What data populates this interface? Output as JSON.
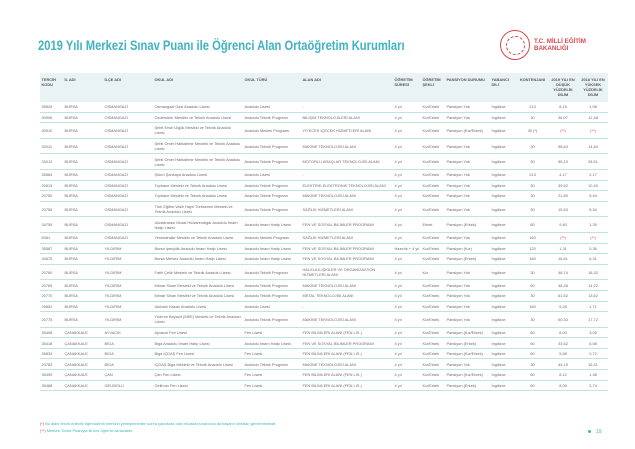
{
  "title": "2019 Yılı Merkezi Sınav Puanı ile Öğrenci Alan Ortaöğretim Kurumları",
  "logo": {
    "line1": "T.C. MİLLİ EĞİTİM",
    "line2": "BAKANLIĞI"
  },
  "colors": {
    "accent": "#3fb3c2",
    "brand_red": "#d8474b"
  },
  "columns": [
    "TERCİH KODU",
    "İL ADI",
    "İLÇE ADI",
    "OKUL ADI",
    "OKUL TÜRÜ",
    "ALAN ADI",
    "ÖĞRETİM SÜRESİ",
    "ÖĞRETİM ŞEKLİ",
    "PANSİYON DURUMU",
    "YABANCI DİLİ",
    "KONTENJANI",
    "2019 YILI EN DÜŞÜK YÜZDELİK DİLİM",
    "2018 YILI EN YÜKSEK YÜZDELİK DİLİM"
  ],
  "rows": [
    [
      "35829",
      "BURSA",
      "OSMANGAZİ",
      "Osmangazi Gazi Anadolu Lisesi",
      "Anadolu Lisesi",
      "-",
      "4 yıl",
      "Kız/Erkek",
      "Pansiyon Yok",
      "İngilizce",
      "213",
      "8,15",
      "1,98"
    ],
    [
      "30906",
      "BURSA",
      "OSMANGAZİ",
      "Özdemirler Mesleki ve Teknik Anadolu Lisesi",
      "Anadolu Teknik Programı",
      "BİLİŞİM TEKNOLOJİLERİ ALANI",
      "4 yıl",
      "Kız/Erkek",
      "Pansiyon Yok",
      "İngilizce",
      "30",
      "36,07",
      "12,48"
    ],
    [
      "30910",
      "BURSA",
      "OSMANGAZİ",
      "Şehit Ersel Ülgük Mesleki ve Teknik Anadolu Lisesi",
      "Anadolu Meslek Programı",
      "YİYECEK İÇECEK HİZMETLERİ ALANI",
      "4 yıl",
      "Kız/Erkek",
      "Pansiyon (Kız/Erkek)",
      "İngilizce",
      "30 (*)",
      "(**)",
      "(**)"
    ],
    [
      "33011",
      "BURSA",
      "OSMANGAZİ",
      "Şehit Ömer Halisdemir Mesleki ve Teknik Anadolu Lisesi",
      "Anadolu Teknik Programı",
      "MAKİNE TEKNOLOJİSİ ALANI",
      "4 yıl",
      "Kız/Erkek",
      "Pansiyon Yok",
      "İngilizce",
      "30",
      "58,63",
      "14,84"
    ],
    [
      "33012",
      "BURSA",
      "OSMANGAZİ",
      "Şehit Ömer Halisdemir Mesleki ve Teknik Anadolu Lisesi",
      "Anadolu Teknik Programı",
      "MOTORLU ARAÇLAR TEKNOLOJİSİ ALANI",
      "4 yıl",
      "Kız/Erkek",
      "Pansiyon Yok",
      "İngilizce",
      "30",
      "55,10",
      "28,51"
    ],
    [
      "35564",
      "BURSA",
      "OSMANGAZİ",
      "Şükrü Şankaya Anadolu Lisesi",
      "Anadolu Lisesi",
      "-",
      "4 yıl",
      "Kız/Erkek",
      "Pansiyon Yok",
      "İngilizce",
      "213",
      "4,17",
      "2,17"
    ],
    [
      "20613",
      "BURSA",
      "OSMANGAZİ",
      "Tophane Mesleki ve Teknik Anadolu Lisesi",
      "Anadolu Teknik Programı",
      "ELEKTRİK-ELEKTRONİK TEKNOLOJİSİ ALANI",
      "4 yıl",
      "Kız/Erkek",
      "Pansiyon Yok",
      "İngilizce",
      "30",
      "39,62",
      "10,40"
    ],
    [
      "20750",
      "BURSA",
      "OSMANGAZİ",
      "Tophane Mesleki ve Teknik Anadolu Lisesi",
      "Anadolu Teknik Programı",
      "MAKİNE TEKNOLOJİSİ ALANI",
      "4 yıl",
      "Kız/Erkek",
      "Pansiyon Yok",
      "İngilizce",
      "30",
      "21,80",
      "8,44"
    ],
    [
      "20755",
      "BURSA",
      "OSMANGAZİ",
      "Türk Eğitim Vakfı Hayri Türkseven Mesleki ve Teknik Anadolu Lisesi",
      "Anadolu Teknik Programı",
      "SAĞLIK HİZMETLERİ ALANI",
      "4 yıl",
      "Kız/Erkek",
      "Pansiyon Yok",
      "İngilizce",
      "30",
      "15,63",
      "6,34"
    ],
    [
      "34759",
      "BURSA",
      "OSMANGAZİ",
      "Uluslararası Murat Hüdavendigar Anadolu İmam Hatip Lisesi",
      "Anadolu İmam Hatip Lisesi",
      "FEN VE SOSYAL BİLİMLER PROGRAMI",
      "4 yıl",
      "Erkek",
      "Pansiyon (Erkek)",
      "İngilizce",
      "60",
      "9,80",
      "1,39"
    ],
    [
      "8361",
      "BURSA",
      "OSMANGAZİ",
      "Yenimahalle Mesleki ve Teknik Anadolu Lisesi",
      "Anadolu Meslek Programı",
      "SAĞLIK HİZMETLERİ ALANI",
      "4 yıl",
      "Kız/Erkek",
      "Pansiyon Yok",
      "İngilizce",
      "160",
      "(**)",
      "(**)"
    ],
    [
      "35587",
      "BURSA",
      "YILDIRIM",
      "Bursa İpekçilik Anadolu İmam Hatip Lisesi",
      "Anadolu İmam Hatip Lisesi",
      "FEN VE SOSYAL BİLİMLER PROGRAMI",
      "Hazırlık + 4 yıl",
      "Kız/Erkek",
      "Pansiyon (Kız)",
      "İngilizce",
      "120",
      "1,31",
      "0,36"
    ],
    [
      "34675",
      "BURSA",
      "YILDIRIM",
      "Bursa Merkez Anadolu İmam Hatip Lisesi",
      "Anadolu İmam Hatip Lisesi",
      "FEN VE SOSYAL BİLİMLER PROGRAMI",
      "4 yıl",
      "Kız/Erkek",
      "Pansiyon (Erkek)",
      "İngilizce",
      "180",
      "16,61",
      "6,31"
    ],
    [
      "20760",
      "BURSA",
      "YILDIRIM",
      "Fatih Çelik Mesleki ve Teknik Anadolu Lisesi",
      "Anadolu Teknik Programı",
      "HALKLA İLİŞKİLER VE ORGANİZASYON HİZMETLERİ ALANI",
      "4 yıl",
      "Kız",
      "Pansiyon Yok",
      "İngilizce",
      "30",
      "48,74",
      "18,32"
    ],
    [
      "20765",
      "BURSA",
      "YILDIRIM",
      "Mimar Sinan Mesleki ve Teknik Anadolu Lisesi",
      "Anadolu Teknik Programı",
      "MAKİNE TEKNOLOJİSİ ALANI",
      "4 yıl",
      "Kız/Erkek",
      "Pansiyon Yok",
      "İngilizce",
      "60",
      "48,28",
      "14,22"
    ],
    [
      "20770",
      "BURSA",
      "YILDIRIM",
      "Mimar Sinan Mesleki ve Teknik Anadolu Lisesi",
      "Anadolu Teknik Programı",
      "METAL TEKNOLOJİSİ ALANI",
      "4 yıl",
      "Kız/Erkek",
      "Pansiyon Yok",
      "İngilizce",
      "30",
      "61,62",
      "13,62"
    ],
    [
      "25852",
      "BURSA",
      "YILDIRIM",
      "Ulubatlı Hasan Anadolu Lisesi",
      "Anadolu Lisesi",
      "-",
      "4 yıl",
      "Kız/Erkek",
      "Pansiyon Yok",
      "İngilizce",
      "180",
      "5,28",
      "1,71"
    ],
    [
      "20775",
      "BURSA",
      "YILDIRIM",
      "Yıldırım Beyazıt (MKE) Mesleki ve Teknik Anadolu Lisesi",
      "Anadolu Teknik Programı",
      "MAKİNE TEKNOLOJİSİ ALANI",
      "4 yıl",
      "Kız/Erkek",
      "Pansiyon Yok",
      "İngilizce",
      "30",
      "50,33",
      "17,72"
    ],
    [
      "35498",
      "ÇANAKKALE",
      "AYVACIK",
      "Ayvacık Fen Lisesi",
      "Fen Lisesi",
      "FEN BİLİMLERİ ALANI (FEN LİS.)",
      "4 yıl",
      "Kız/Erkek",
      "Pansiyon (Kız/Erkek)",
      "İngilizce",
      "60",
      "8,00",
      "3,05"
    ],
    [
      "35418",
      "ÇANAKKALE",
      "BİGA",
      "Biga Anadolu İmam Hatip Lisesi",
      "Anadolu İmam Hatip Lisesi",
      "FEN VE SOSYAL BİLİMLER PROGRAMI",
      "4 yıl",
      "Kız/Erkek",
      "Pansiyon (Erkek)",
      "İngilizce",
      "60",
      "33,62",
      "6,58"
    ],
    [
      "35833",
      "ÇANAKKALE",
      "BİGA",
      "Biga İÇDAŞ Fen Lisesi",
      "Fen Lisesi",
      "FEN BİLİMLERİ ALANI (FEN LİS.)",
      "4 yıl",
      "Kız/Erkek",
      "Pansiyon (Kız/Erkek)",
      "İngilizce",
      "60",
      "5,58",
      "0,72"
    ],
    [
      "20783",
      "ÇANAKKALE",
      "BİGA",
      "İÇDAŞ Biga Mesleki ve Teknik Anadolu Lisesi",
      "Anadolu Teknik Programı",
      "MAKİNE TEKNOLOJİSİ ALANI",
      "4 yıl",
      "Kız/Erkek",
      "Pansiyon Yok",
      "İngilizce",
      "30",
      "44,15",
      "15,41"
    ],
    [
      "35490",
      "ÇANAKKALE",
      "ÇAN",
      "Çan Fen Lisesi",
      "Fen Lisesi",
      "FEN BİLİMLERİ ALANI (FEN LİS.)",
      "4 yıl",
      "Kız/Erkek",
      "Pansiyon (Kız/Erkek)",
      "İngilizce",
      "60",
      "8,12",
      "1,38"
    ],
    [
      "35488",
      "ÇANAKKALE",
      "GELİBOLU",
      "Gelibolu Fen Lisesi",
      "Fen Lisesi",
      "FEN BİLİMLERİ ALANI (FEN LİS.)",
      "4 yıl",
      "Kız/Erkek",
      "Pansiyon (Erkek)",
      "İngilizce",
      "60",
      "8,08",
      "2,74"
    ]
  ],
  "notes": {
    "n1_mark": "(*)",
    "n1": "Bu alanı tercih edecek öğrencilerin merkezi yerleştirmeden sonra yapılacak olan mülakat sınavında da başarılı olmaları gerekmektedir.",
    "n2_mark": "(**)",
    "n2": "Merkezi Sınav Puanıyla ilk kez öğrenci alınacaktır."
  },
  "page_number": "19"
}
